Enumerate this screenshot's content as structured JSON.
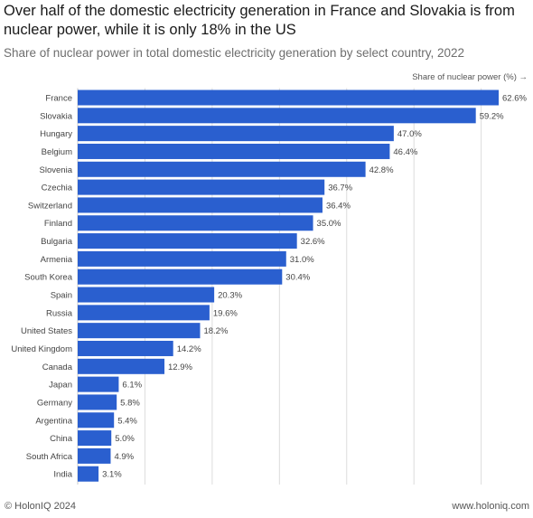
{
  "title": "Over half of the domestic electricity generation in France and Slovakia is from nuclear power, while it is only 18% in the US",
  "subtitle": "Share of nuclear power in total domestic electricity generation by select country, 2022",
  "footer": {
    "copyright": "© HolonIQ 2024",
    "website": "www.holoniq.com"
  },
  "colors": {
    "bar": "#2a5fcf",
    "grid": "#dcdcdc",
    "label": "#444444"
  },
  "chart_data": {
    "type": "bar",
    "orientation": "horizontal",
    "axis_label": "Share of nuclear power (%) →",
    "categories": [
      "France",
      "Slovakia",
      "Hungary",
      "Belgium",
      "Slovenia",
      "Czechia",
      "Switzerland",
      "Finland",
      "Bulgaria",
      "Armenia",
      "South Korea",
      "Spain",
      "Russia",
      "United States",
      "United Kingdom",
      "Canada",
      "Japan",
      "Germany",
      "Argentina",
      "China",
      "South Africa",
      "India"
    ],
    "values": [
      62.6,
      59.2,
      47.0,
      46.4,
      42.8,
      36.7,
      36.4,
      35.0,
      32.6,
      31.0,
      30.4,
      20.3,
      19.6,
      18.2,
      14.2,
      12.9,
      6.1,
      5.8,
      5.4,
      5.0,
      4.9,
      3.1
    ],
    "value_labels": [
      "62.6%",
      "59.2%",
      "47.0%",
      "46.4%",
      "42.8%",
      "36.7%",
      "36.4%",
      "35.0%",
      "32.6%",
      "31.0%",
      "30.4%",
      "20.3%",
      "19.6%",
      "18.2%",
      "14.2%",
      "12.9%",
      "6.1%",
      "5.8%",
      "5.4%",
      "5.0%",
      "4.9%",
      "3.1%"
    ],
    "xlim": [
      0,
      62.6
    ],
    "gridlines": [
      10,
      20,
      30,
      40,
      50,
      60
    ],
    "grid": true
  }
}
